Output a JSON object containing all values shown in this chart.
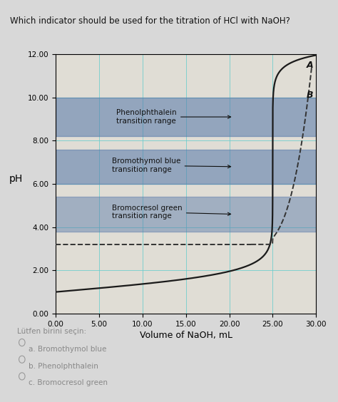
{
  "title": "Which indicator should be used for the titration of HCl with NaOH?",
  "xlabel": "Volume of NaOH, mL",
  "ylabel": "pH",
  "xlim": [
    0.0,
    30.0
  ],
  "ylim": [
    0.0,
    12.0
  ],
  "xticks": [
    0.0,
    5.0,
    10.0,
    15.0,
    20.0,
    25.0,
    30.0
  ],
  "xtick_labels": [
    "0.00",
    "5.00",
    "10.00",
    "15.00",
    "20.00",
    "25.00",
    "30.00"
  ],
  "yticks": [
    0.0,
    2.0,
    4.0,
    6.0,
    8.0,
    10.0,
    12.0
  ],
  "ytick_labels": [
    "0.00",
    "2.00",
    "4.00",
    "6.00",
    "8.00",
    "10.00",
    "12.00"
  ],
  "bg_color": "#d8d8d8",
  "title_bg_color": "#b8c4d0",
  "plot_bg_color": "#e0ddd5",
  "bands": [
    {
      "ymin": 8.2,
      "ymax": 10.0,
      "color": "#5577aa",
      "alpha": 0.55
    },
    {
      "ymin": 6.0,
      "ymax": 7.6,
      "color": "#5577aa",
      "alpha": 0.55
    },
    {
      "ymin": 3.8,
      "ymax": 5.4,
      "color": "#5577aa",
      "alpha": 0.45
    }
  ],
  "curve_color": "#1a1a1a",
  "dashed_color": "#333333",
  "label_A": "A",
  "label_B": "B",
  "ann_phenol_text": "Phenolphthalein\ntransition range",
  "ann_bromo_text": "Bromothymol blue\ntransition range",
  "ann_bromo_green_text": "Bromocresol green\ntransition range",
  "options_title": "Lütfen birini seçin:",
  "options": [
    "a. Bromothymol blue",
    "b. Phenolphthalein",
    "c. Bromocresol green"
  ],
  "grid_color": "#66cccc",
  "V_eq": 25.0,
  "C": 0.1
}
